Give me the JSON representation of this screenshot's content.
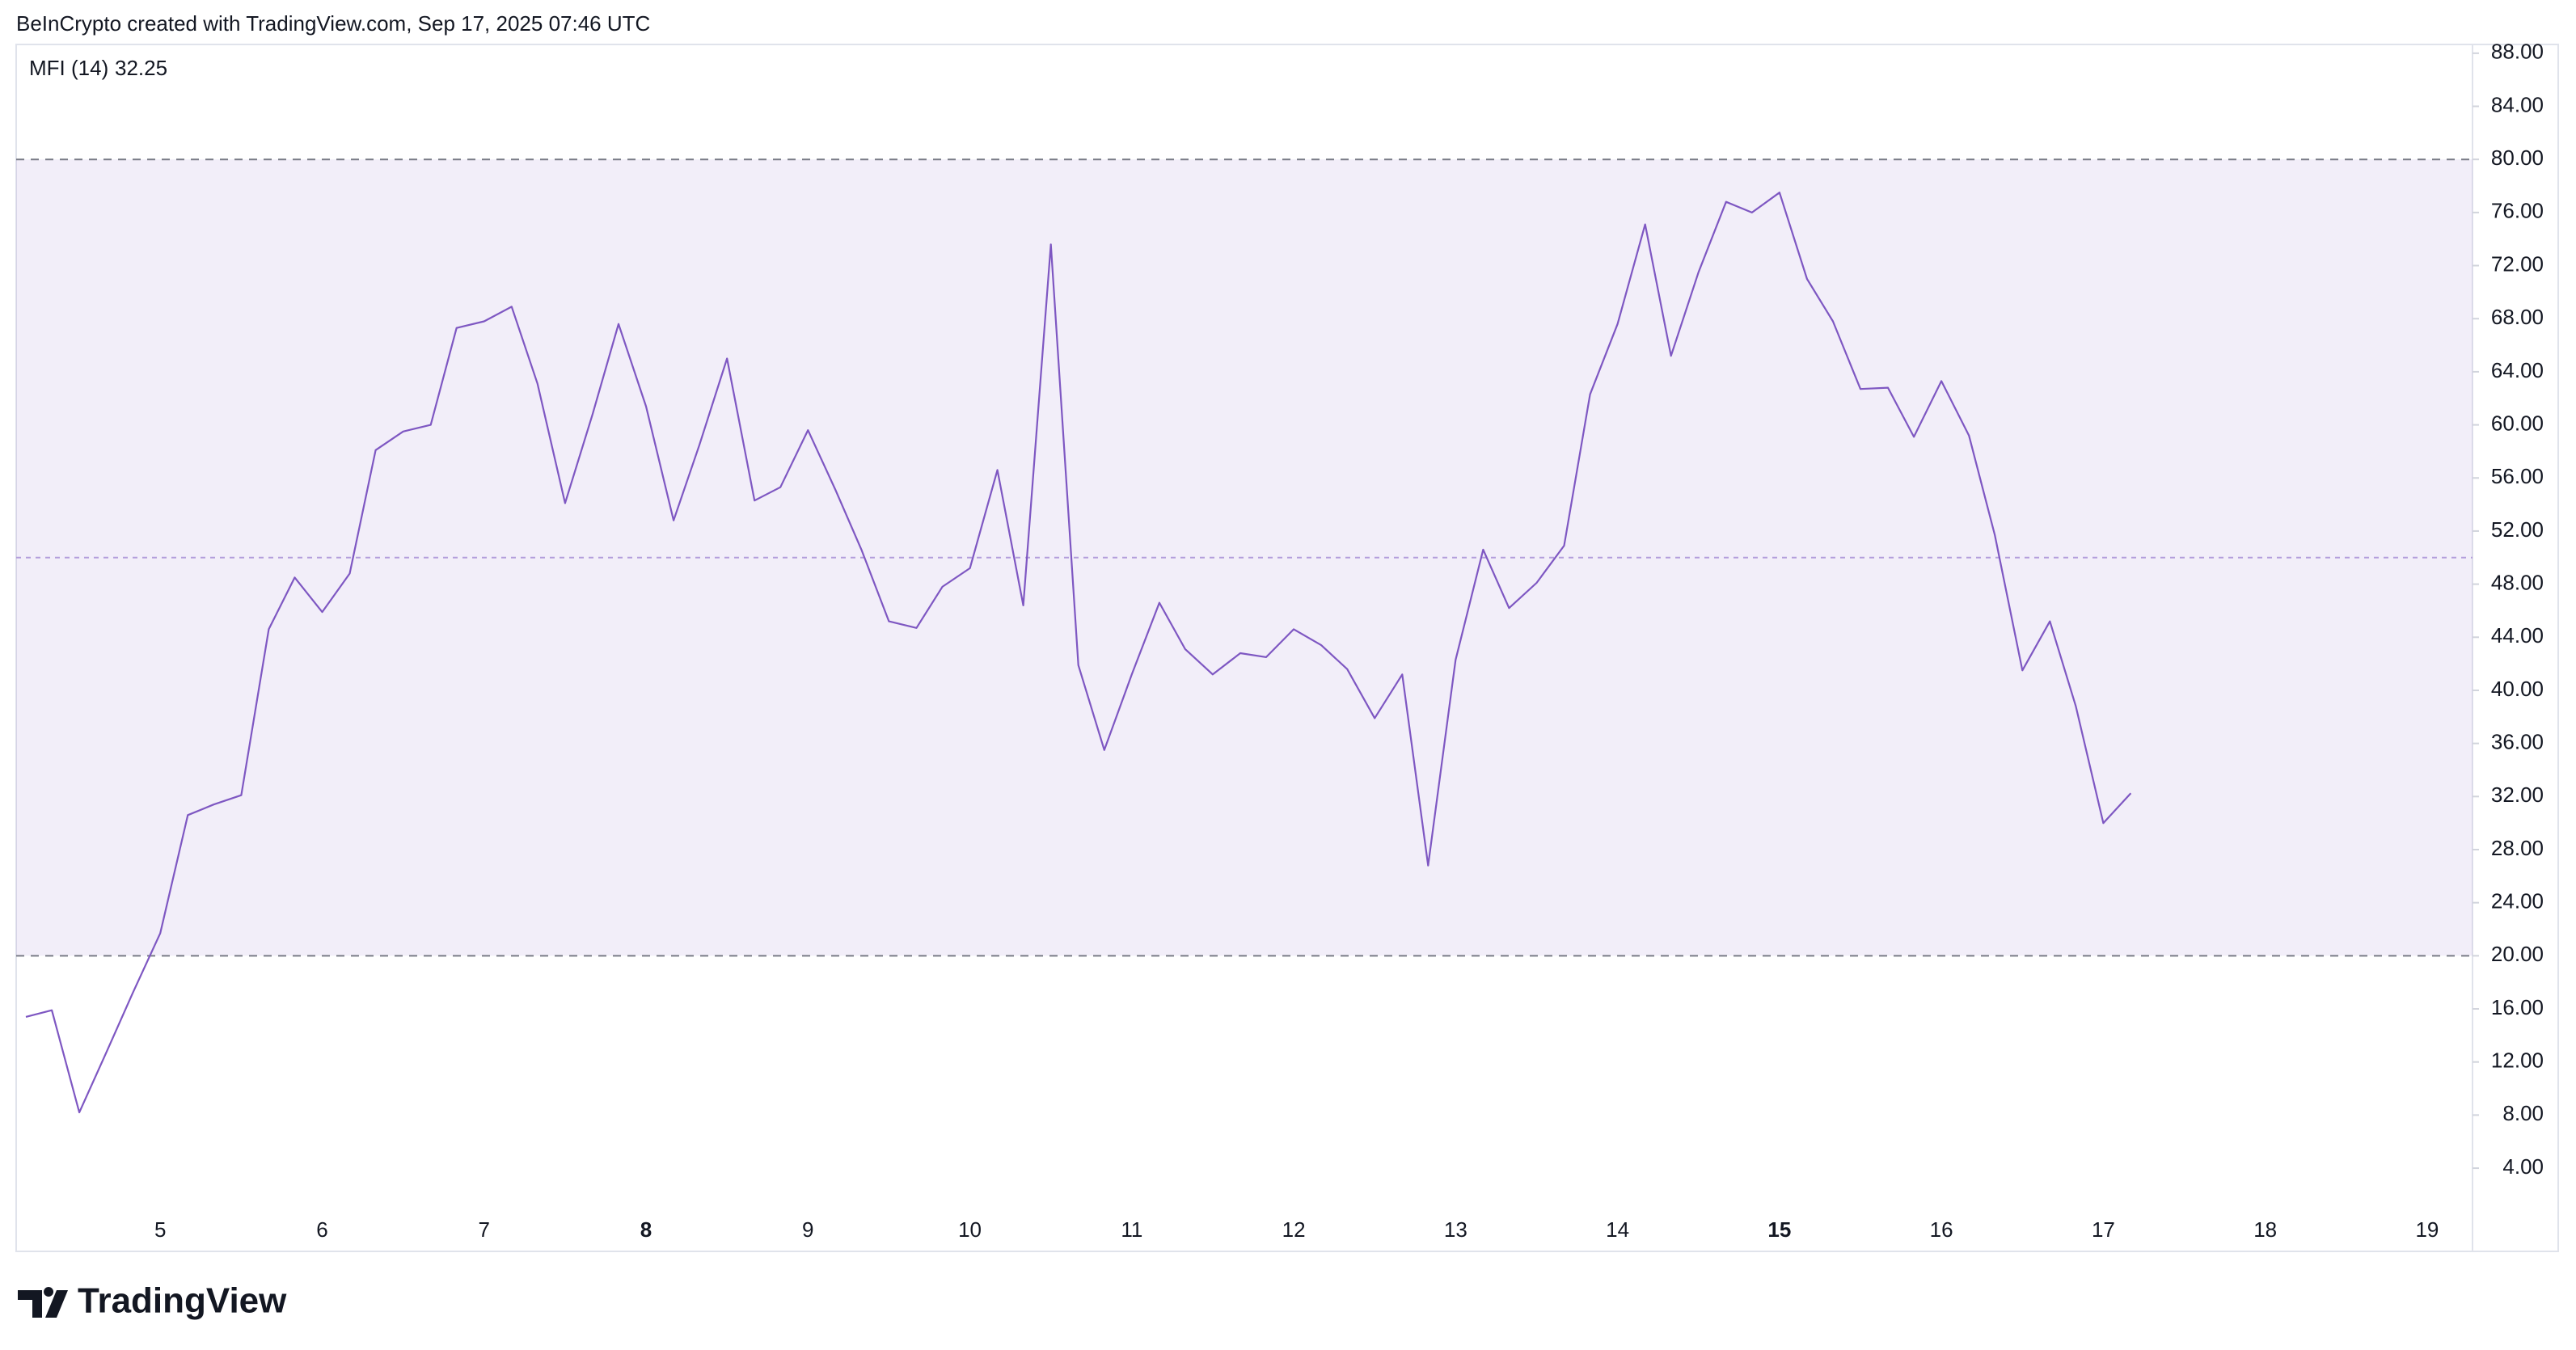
{
  "chart_data": {
    "type": "line",
    "header": "BeInCrypto created with TradingView.com, Sep 17, 2025 07:46 UTC",
    "footer_logo": "TradingView",
    "x": [
      4.17,
      4.33,
      4.5,
      4.67,
      4.83,
      5,
      5.17,
      5.33,
      5.5,
      5.67,
      5.83,
      6,
      6.17,
      6.33,
      6.5,
      6.67,
      6.83,
      7,
      7.17,
      7.33,
      7.5,
      7.67,
      7.83,
      8,
      8.17,
      8.33,
      8.5,
      8.67,
      8.83,
      9,
      9.17,
      9.33,
      9.5,
      9.67,
      9.83,
      10,
      10.17,
      10.33,
      10.5,
      10.67,
      10.83,
      11,
      11.17,
      11.33,
      11.5,
      11.67,
      11.83,
      12,
      12.17,
      12.33,
      12.5,
      12.67,
      12.83,
      13,
      13.17,
      13.33,
      13.5,
      13.67,
      13.83,
      14,
      14.17,
      14.33,
      14.5,
      14.67,
      14.83,
      15,
      15.17,
      15.33,
      15.5,
      15.67,
      15.83,
      16,
      16.17,
      16.33,
      16.5,
      16.67,
      16.83,
      17,
      17.17
    ],
    "series": [
      {
        "name": "MFI (14)",
        "color": "#7e57c2",
        "values": [
          15.4,
          15.9,
          8.2,
          12.8,
          17.2,
          21.7,
          30.6,
          31.4,
          32.1,
          44.6,
          48.5,
          45.9,
          48.8,
          58.1,
          59.5,
          60.0,
          67.3,
          67.8,
          68.9,
          63.1,
          54.1,
          60.8,
          67.6,
          61.4,
          52.8,
          58.5,
          65.0,
          54.3,
          55.3,
          59.6,
          55.1,
          50.6,
          45.2,
          44.7,
          47.8,
          49.2,
          56.6,
          46.4,
          73.6,
          41.9,
          35.5,
          41.2,
          46.6,
          43.1,
          41.2,
          42.8,
          42.5,
          44.6,
          43.4,
          41.6,
          37.9,
          41.2,
          26.8,
          42.3,
          50.6,
          46.2,
          48.1,
          50.9,
          62.3,
          67.6,
          75.1,
          65.2,
          71.5,
          76.8,
          76.0,
          77.5,
          71.0,
          67.8,
          62.7,
          62.8,
          59.1,
          63.3,
          59.2,
          51.7,
          41.5,
          45.2,
          38.8,
          30.0,
          32.25
        ]
      }
    ],
    "xlim": [
      4.11,
      19.28
    ],
    "xticks": [
      5,
      6,
      7,
      8,
      9,
      10,
      11,
      12,
      13,
      14,
      15,
      16,
      17,
      18,
      19
    ],
    "bold_xticks": [
      8,
      15
    ],
    "ylim": [
      -2.27,
      88.66
    ],
    "yticks": [
      {
        "value": 4,
        "label": "4.00"
      },
      {
        "value": 8,
        "label": "8.00"
      },
      {
        "value": 12,
        "label": "12.00"
      },
      {
        "value": 16,
        "label": "16.00"
      },
      {
        "value": 20,
        "label": "20.00"
      },
      {
        "value": 24,
        "label": "24.00"
      },
      {
        "value": 28,
        "label": "28.00"
      },
      {
        "value": 32,
        "label": "32.00"
      },
      {
        "value": 36,
        "label": "36.00"
      },
      {
        "value": 40,
        "label": "40.00"
      },
      {
        "value": 44,
        "label": "44.00"
      },
      {
        "value": 48,
        "label": "48.00"
      },
      {
        "value": 52,
        "label": "52.00"
      },
      {
        "value": 56,
        "label": "56.00"
      },
      {
        "value": 60,
        "label": "60.00"
      },
      {
        "value": 64,
        "label": "64.00"
      },
      {
        "value": 68,
        "label": "68.00"
      },
      {
        "value": 72,
        "label": "72.00"
      },
      {
        "value": 76,
        "label": "76.00"
      },
      {
        "value": 80,
        "label": "80.00"
      },
      {
        "value": 84,
        "label": "84.00"
      },
      {
        "value": 88,
        "label": "88.00"
      }
    ],
    "band": {
      "upper": 80,
      "middle": 50,
      "lower": 20,
      "color": "#7e57c2"
    }
  }
}
